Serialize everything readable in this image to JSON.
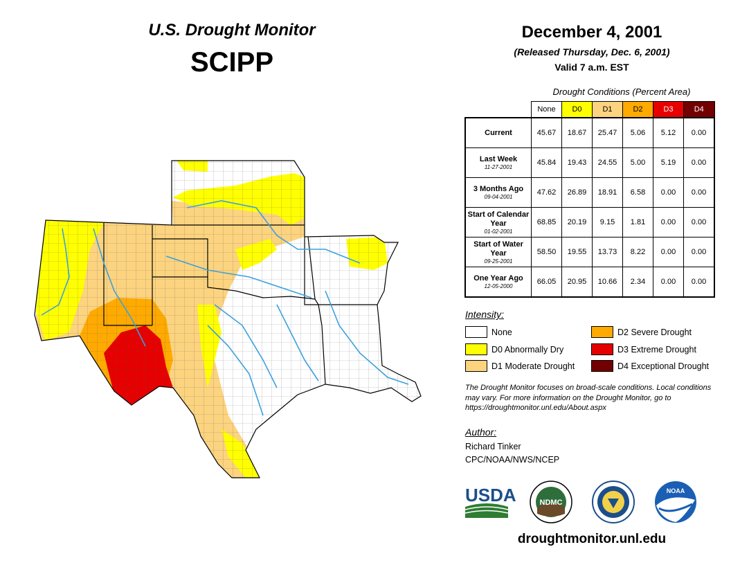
{
  "header": {
    "product": "U.S. Drought Monitor",
    "region": "SCIPP",
    "date": "December 4, 2001",
    "released": "(Released Thursday, Dec. 6, 2001)",
    "valid": "Valid 7 a.m. EST"
  },
  "table": {
    "caption": "Drought Conditions (Percent Area)",
    "columns": [
      "None",
      "D0",
      "D1",
      "D2",
      "D3",
      "D4"
    ],
    "column_colors": [
      "#ffffff",
      "#ffff00",
      "#fcd37f",
      "#ffaa00",
      "#e60000",
      "#730000"
    ],
    "rows": [
      {
        "label": "Current",
        "sub": "",
        "values": [
          "45.67",
          "18.67",
          "25.47",
          "5.06",
          "5.12",
          "0.00"
        ]
      },
      {
        "label": "Last Week",
        "sub": "11-27-2001",
        "values": [
          "45.84",
          "19.43",
          "24.55",
          "5.00",
          "5.19",
          "0.00"
        ]
      },
      {
        "label": "3 Months Ago",
        "sub": "09-04-2001",
        "values": [
          "47.62",
          "26.89",
          "18.91",
          "6.58",
          "0.00",
          "0.00"
        ]
      },
      {
        "label": "Start of Calendar Year",
        "sub": "01-02-2001",
        "values": [
          "68.85",
          "20.19",
          "9.15",
          "1.81",
          "0.00",
          "0.00"
        ]
      },
      {
        "label": "Start of Water Year",
        "sub": "09-25-2001",
        "values": [
          "58.50",
          "19.55",
          "13.73",
          "8.22",
          "0.00",
          "0.00"
        ]
      },
      {
        "label": "One Year Ago",
        "sub": "12-05-2000",
        "values": [
          "66.05",
          "20.95",
          "10.66",
          "2.34",
          "0.00",
          "0.00"
        ]
      }
    ]
  },
  "legend": {
    "title": "Intensity:",
    "items": [
      {
        "label": "None",
        "color": "#ffffff"
      },
      {
        "label": "D0 Abnormally Dry",
        "color": "#ffff00"
      },
      {
        "label": "D1 Moderate Drought",
        "color": "#fcd37f"
      },
      {
        "label": "D2 Severe Drought",
        "color": "#ffaa00"
      },
      {
        "label": "D3 Extreme Drought",
        "color": "#e60000"
      },
      {
        "label": "D4 Exceptional Drought",
        "color": "#730000"
      }
    ]
  },
  "note": "The Drought Monitor focuses on broad-scale conditions. Local conditions may vary. For more information on the Drought Monitor, go to https://droughtmonitor.unl.edu/About.aspx",
  "author": {
    "label": "Author:",
    "name": "Richard Tinker",
    "org": "CPC/NOAA/NWS/NCEP"
  },
  "logos": {
    "usda": "USDA",
    "ndmc": "NDMC",
    "noaa": "NOAA"
  },
  "colors": {
    "water": "#3aa0e0",
    "border": "#000000",
    "county": "#555555"
  },
  "footer_url": "droughtmonitor.unl.edu"
}
